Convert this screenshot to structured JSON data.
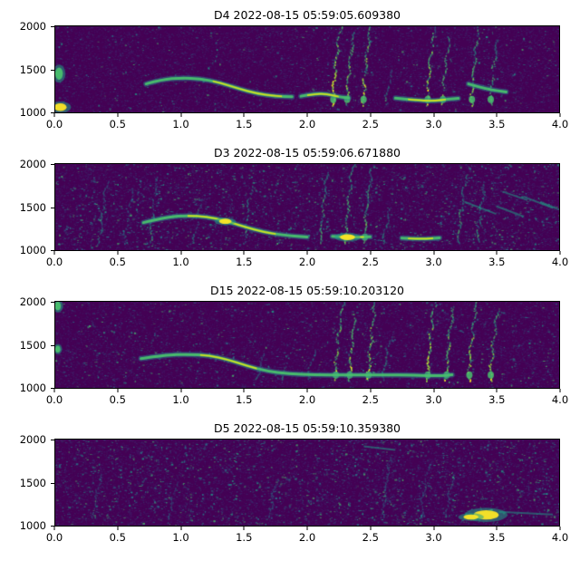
{
  "style": {
    "background": "#ffffff",
    "text_color": "#000000",
    "colormap": "viridis",
    "palette": [
      "#440154",
      "#46327e",
      "#365c8d",
      "#277f8e",
      "#1fa187",
      "#4ac16d",
      "#a0da39",
      "#fde725"
    ]
  },
  "chart_data": [
    {
      "type": "heatmap",
      "title": "D4 2022-08-15 05:59:05.609380",
      "xlim": [
        0.0,
        4.0
      ],
      "ylim": [
        1000,
        2000
      ],
      "x_ticks": [
        "0.0",
        "0.5",
        "1.0",
        "1.5",
        "2.0",
        "2.5",
        "3.0",
        "3.5",
        "4.0"
      ],
      "y_ticks": [
        "1000",
        "1500",
        "2000"
      ],
      "xlabel": "",
      "ylabel": "",
      "colormap": "viridis",
      "features": {
        "noise": 0.12,
        "whistle": [
          {
            "pts": [
              [
                0.72,
                1330
              ],
              [
                0.85,
                1382
              ],
              [
                1.0,
                1400
              ],
              [
                1.15,
                1392
              ],
              [
                1.3,
                1348
              ],
              [
                1.45,
                1278
              ],
              [
                1.6,
                1218
              ],
              [
                1.75,
                1188
              ],
              [
                1.88,
                1182
              ]
            ],
            "bright": [
              1.25,
              1.8
            ]
          },
          {
            "pts": [
              [
                1.95,
                1188
              ],
              [
                2.05,
                1212
              ],
              [
                2.15,
                1218
              ],
              [
                2.25,
                1180
              ],
              [
                2.33,
                1168
              ]
            ],
            "bright": [
              2.0,
              2.25
            ]
          },
          {
            "pts": [
              [
                2.7,
                1165
              ],
              [
                2.85,
                1142
              ],
              [
                3.0,
                1132
              ],
              [
                3.12,
                1152
              ],
              [
                3.2,
                1162
              ]
            ],
            "bright": [
              2.8,
              3.1
            ]
          },
          {
            "pts": [
              [
                3.28,
                1330
              ],
              [
                3.42,
                1270
              ],
              [
                3.58,
                1238
              ]
            ],
            "bright": []
          }
        ],
        "bursts": [
          [
            2.2,
            2000,
            1.0
          ],
          [
            2.31,
            1950,
            0.8
          ],
          [
            2.44,
            2000,
            0.9
          ],
          [
            2.62,
            1500,
            0.4
          ],
          [
            2.95,
            2000,
            0.9
          ],
          [
            3.07,
            1900,
            0.7
          ],
          [
            3.3,
            2000,
            0.8
          ],
          [
            3.45,
            1850,
            0.7
          ]
        ],
        "blobs": [
          [
            0.03,
            1450,
            0.03,
            70,
            0
          ],
          [
            0.04,
            1060,
            0.05,
            45,
            1
          ]
        ],
        "streaks": []
      }
    },
    {
      "type": "heatmap",
      "title": "D3 2022-08-15 05:59:06.671880",
      "xlim": [
        0.0,
        4.0
      ],
      "ylim": [
        1000,
        2000
      ],
      "x_ticks": [
        "0.0",
        "0.5",
        "1.0",
        "1.5",
        "2.0",
        "2.5",
        "3.0",
        "3.5",
        "4.0"
      ],
      "y_ticks": [
        "1000",
        "1500",
        "2000"
      ],
      "xlabel": "",
      "ylabel": "",
      "colormap": "viridis",
      "features": {
        "noise": 0.4,
        "whistle": [
          {
            "pts": [
              [
                0.7,
                1320
              ],
              [
                0.9,
                1388
              ],
              [
                1.05,
                1400
              ],
              [
                1.2,
                1390
              ],
              [
                1.35,
                1342
              ],
              [
                1.5,
                1272
              ],
              [
                1.65,
                1212
              ],
              [
                1.8,
                1175
              ],
              [
                2.0,
                1152
              ]
            ],
            "bright": [
              1.05,
              1.75
            ]
          },
          {
            "pts": [
              [
                2.2,
                1160
              ],
              [
                2.35,
                1148
              ],
              [
                2.5,
                1155
              ]
            ],
            "bright": [
              2.25,
              2.45
            ]
          },
          {
            "pts": [
              [
                2.75,
                1140
              ],
              [
                2.9,
                1128
              ],
              [
                3.05,
                1142
              ]
            ],
            "bright": [
              2.8,
              3.0
            ]
          }
        ],
        "bursts": [
          [
            0.35,
            1800,
            0.35
          ],
          [
            0.55,
            1700,
            0.3
          ],
          [
            0.75,
            1850,
            0.4
          ],
          [
            1.1,
            1600,
            0.3
          ],
          [
            1.5,
            1750,
            0.45
          ],
          [
            2.1,
            1900,
            0.6
          ],
          [
            2.3,
            2000,
            0.7
          ],
          [
            2.45,
            1950,
            0.65
          ],
          [
            2.6,
            1500,
            0.4
          ],
          [
            3.2,
            1900,
            0.55
          ],
          [
            3.35,
            1800,
            0.5
          ]
        ],
        "blobs": [
          [
            2.32,
            1150,
            0.06,
            35,
            1
          ],
          [
            1.35,
            1335,
            0.05,
            30,
            1
          ]
        ],
        "streaks": [
          [
            3.25,
            1560,
            3.5,
            1420
          ],
          [
            3.5,
            1510,
            3.72,
            1390
          ],
          [
            3.72,
            1620,
            3.95,
            1490
          ],
          [
            3.55,
            1680,
            3.75,
            1580
          ],
          [
            3.85,
            1560,
            4.0,
            1470
          ]
        ]
      }
    },
    {
      "type": "heatmap",
      "title": "D15 2022-08-15 05:59:10.203120",
      "xlim": [
        0.0,
        4.0
      ],
      "ylim": [
        1000,
        2000
      ],
      "x_ticks": [
        "0.0",
        "0.5",
        "1.0",
        "1.5",
        "2.0",
        "2.5",
        "3.0",
        "3.5",
        "4.0"
      ],
      "y_ticks": [
        "1000",
        "1500",
        "2000"
      ],
      "xlabel": "",
      "ylabel": "",
      "colormap": "viridis",
      "features": {
        "noise": 0.2,
        "whistle": [
          {
            "pts": [
              [
                0.68,
                1340
              ],
              [
                0.88,
                1382
              ],
              [
                1.05,
                1390
              ],
              [
                1.22,
                1378
              ],
              [
                1.38,
                1325
              ],
              [
                1.52,
                1255
              ],
              [
                1.68,
                1195
              ],
              [
                1.85,
                1162
              ],
              [
                2.05,
                1152
              ],
              [
                2.3,
                1148
              ],
              [
                2.6,
                1152
              ],
              [
                2.85,
                1148
              ],
              [
                3.05,
                1138
              ],
              [
                3.15,
                1152
              ]
            ],
            "bright": [
              1.15,
              1.6
            ]
          }
        ],
        "bursts": [
          [
            1.6,
            1420,
            0.3
          ],
          [
            1.8,
            1400,
            0.3
          ],
          [
            2.0,
            1450,
            0.3
          ],
          [
            2.22,
            2000,
            0.9
          ],
          [
            2.33,
            1950,
            0.85
          ],
          [
            2.48,
            2000,
            0.9
          ],
          [
            2.6,
            1600,
            0.4
          ],
          [
            2.95,
            2000,
            0.95
          ],
          [
            3.1,
            1950,
            0.85
          ],
          [
            3.28,
            2000,
            0.9
          ],
          [
            3.45,
            1900,
            0.85
          ]
        ],
        "blobs": [
          [
            0.02,
            1950,
            0.025,
            50,
            0
          ],
          [
            0.02,
            1450,
            0.02,
            40,
            0
          ]
        ],
        "streaks": []
      }
    },
    {
      "type": "heatmap",
      "title": "D5 2022-08-15 05:59:10.359380",
      "xlim": [
        0.0,
        4.0
      ],
      "ylim": [
        1000,
        2000
      ],
      "x_ticks": [
        "0.0",
        "0.5",
        "1.0",
        "1.5",
        "2.0",
        "2.5",
        "3.0",
        "3.5",
        "4.0"
      ],
      "y_ticks": [
        "1000",
        "1500",
        "2000"
      ],
      "xlabel": "",
      "ylabel": "",
      "colormap": "viridis",
      "features": {
        "noise": 0.45,
        "whistle": [],
        "bursts": [
          [
            0.3,
            1600,
            0.2
          ],
          [
            0.9,
            1500,
            0.2
          ],
          [
            1.7,
            1550,
            0.2
          ],
          [
            2.6,
            1800,
            0.3
          ],
          [
            2.9,
            1700,
            0.25
          ],
          [
            3.1,
            1600,
            0.25
          ]
        ],
        "blobs": [
          [
            3.42,
            1125,
            0.1,
            55,
            1
          ],
          [
            3.3,
            1100,
            0.06,
            30,
            1
          ]
        ],
        "streaks": [
          [
            3.52,
            1160,
            3.95,
            1130
          ],
          [
            2.45,
            1920,
            2.7,
            1880
          ]
        ]
      }
    }
  ]
}
